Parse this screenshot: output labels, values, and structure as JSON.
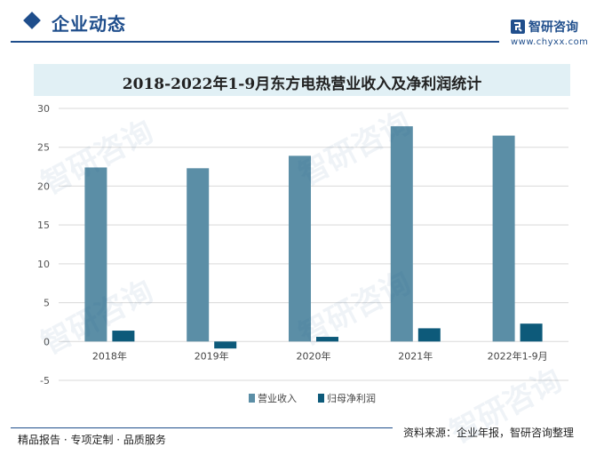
{
  "header": {
    "section_title": "企业动态",
    "brand_name": "智研咨询",
    "brand_url": "www.chyxx.com"
  },
  "footer": {
    "left_text": "精品报告 · 专项定制 · 品质服务",
    "source_text": "资料来源：企业年报，智研咨询整理"
  },
  "watermark": {
    "text": "智研咨询"
  },
  "colors": {
    "brand": "#1f4e8c",
    "revenue": "#5b8ea6",
    "net_profit": "#0d5a7a",
    "title_band": "#e1f0f5"
  },
  "chart_data": {
    "type": "bar",
    "title": "2018-2022年1-9月东方电热营业收入及净利润统计",
    "categories": [
      "2018年",
      "2019年",
      "2020年",
      "2021年",
      "2022年1-9月"
    ],
    "series": [
      {
        "name": "营业收入",
        "values": [
          22.4,
          22.3,
          23.9,
          27.7,
          26.5
        ]
      },
      {
        "name": "归母净利润",
        "values": [
          1.4,
          -0.9,
          0.6,
          1.7,
          2.3
        ]
      }
    ],
    "ylim": [
      -5,
      30
    ],
    "yticks": [
      -5,
      0,
      5,
      10,
      15,
      20,
      25,
      30
    ],
    "grid": true,
    "legend": "bottom-center"
  }
}
